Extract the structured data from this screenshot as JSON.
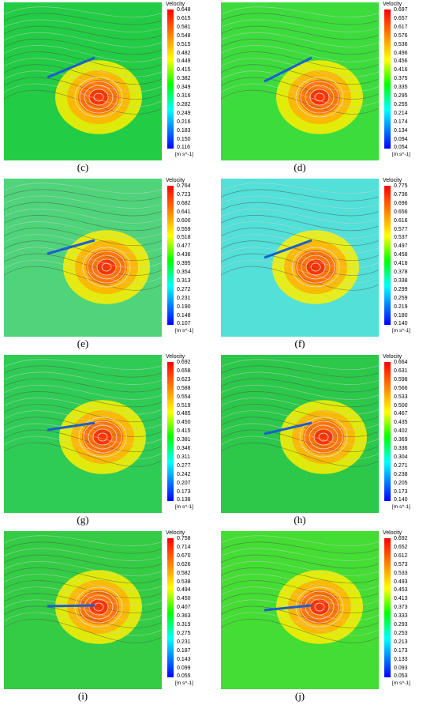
{
  "colorbar_title": "Velocity",
  "colorbar_unit": "[m s^-1]",
  "panels": [
    {
      "caption": "(c)",
      "ticks": [
        "0.648",
        "0.615",
        "0.581",
        "0.548",
        "0.515",
        "0.482",
        "0.449",
        "0.415",
        "0.382",
        "0.349",
        "0.316",
        "0.282",
        "0.249",
        "0.216",
        "0.183",
        "0.150",
        "0.116"
      ]
    },
    {
      "caption": "(d)",
      "ticks": [
        "0.697",
        "0.657",
        "0.617",
        "0.576",
        "0.536",
        "0.496",
        "0.456",
        "0.416",
        "0.375",
        "0.335",
        "0.295",
        "0.255",
        "0.214",
        "0.174",
        "0.134",
        "0.094",
        "0.054"
      ]
    },
    {
      "caption": "(e)",
      "ticks": [
        "0.764",
        "0.723",
        "0.682",
        "0.641",
        "0.600",
        "0.559",
        "0.518",
        "0.477",
        "0.436",
        "0.395",
        "0.354",
        "0.313",
        "0.272",
        "0.231",
        "0.190",
        "0.148",
        "0.107"
      ]
    },
    {
      "caption": "(f)",
      "ticks": [
        "0.775",
        "0.736",
        "0.696",
        "0.656",
        "0.616",
        "0.577",
        "0.537",
        "0.497",
        "0.458",
        "0.418",
        "0.378",
        "0.338",
        "0.299",
        "0.259",
        "0.219",
        "0.180",
        "0.140"
      ]
    },
    {
      "caption": "(g)",
      "ticks": [
        "0.692",
        "0.658",
        "0.623",
        "0.588",
        "0.554",
        "0.519",
        "0.485",
        "0.450",
        "0.415",
        "0.381",
        "0.346",
        "0.311",
        "0.277",
        "0.242",
        "0.207",
        "0.173",
        "0.138"
      ]
    },
    {
      "caption": "(h)",
      "ticks": [
        "0.664",
        "0.631",
        "0.598",
        "0.566",
        "0.533",
        "0.500",
        "0.467",
        "0.435",
        "0.402",
        "0.369",
        "0.336",
        "0.304",
        "0.271",
        "0.238",
        "0.205",
        "0.173",
        "0.140"
      ]
    },
    {
      "caption": "(i)",
      "ticks": [
        "0.758",
        "0.714",
        "0.670",
        "0.626",
        "0.582",
        "0.538",
        "0.494",
        "0.450",
        "0.407",
        "0.363",
        "0.319",
        "0.275",
        "0.231",
        "0.187",
        "0.143",
        "0.099",
        "0.055"
      ]
    },
    {
      "caption": "(j)",
      "ticks": [
        "0.692",
        "0.652",
        "0.612",
        "0.573",
        "0.533",
        "0.493",
        "0.453",
        "0.413",
        "0.373",
        "0.333",
        "0.293",
        "0.253",
        "0.213",
        "0.173",
        "0.133",
        "0.093",
        "0.053"
      ]
    }
  ]
}
